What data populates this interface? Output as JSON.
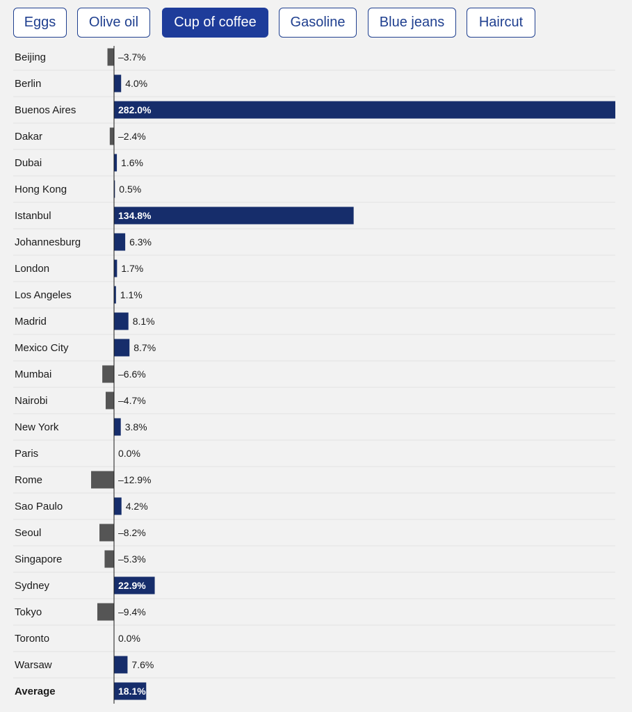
{
  "tabs": [
    {
      "label": "Eggs",
      "active": false
    },
    {
      "label": "Olive oil",
      "active": false
    },
    {
      "label": "Cup of coffee",
      "active": true
    },
    {
      "label": "Gasoline",
      "active": false
    },
    {
      "label": "Blue jeans",
      "active": false
    },
    {
      "label": "Haircut",
      "active": false
    }
  ],
  "colors": {
    "positive": "#162d6b",
    "negative": "#555555",
    "accent": "#1e3c9a"
  },
  "chart_data": {
    "type": "bar",
    "orientation": "horizontal",
    "categories": [
      "Beijing",
      "Berlin",
      "Buenos Aires",
      "Dakar",
      "Dubai",
      "Hong Kong",
      "Istanbul",
      "Johannesburg",
      "London",
      "Los Angeles",
      "Madrid",
      "Mexico City",
      "Mumbai",
      "Nairobi",
      "New York",
      "Paris",
      "Rome",
      "Sao Paulo",
      "Seoul",
      "Singapore",
      "Sydney",
      "Tokyo",
      "Toronto",
      "Warsaw",
      "Average"
    ],
    "values": [
      -3.7,
      4.0,
      282.0,
      -2.4,
      1.6,
      0.5,
      134.8,
      6.3,
      1.7,
      1.1,
      8.1,
      8.7,
      -6.6,
      -4.7,
      3.8,
      0.0,
      -12.9,
      4.2,
      -8.2,
      -5.3,
      22.9,
      -9.4,
      0.0,
      7.6,
      18.1
    ],
    "value_labels": [
      "–3.7%",
      "4.0%",
      "282.0%",
      "–2.4%",
      "1.6%",
      "0.5%",
      "134.8%",
      "6.3%",
      "1.7%",
      "1.1%",
      "8.1%",
      "8.7%",
      "–6.6%",
      "–4.7%",
      "3.8%",
      "0.0%",
      "–12.9%",
      "4.2%",
      "–8.2%",
      "–5.3%",
      "22.9%",
      "–9.4%",
      "0.0%",
      "7.6%",
      "18.1%"
    ],
    "highlight_category": "Average",
    "xlim": [
      -12.9,
      282.0
    ],
    "grid": false,
    "title": "",
    "xlabel": "",
    "ylabel": ""
  }
}
